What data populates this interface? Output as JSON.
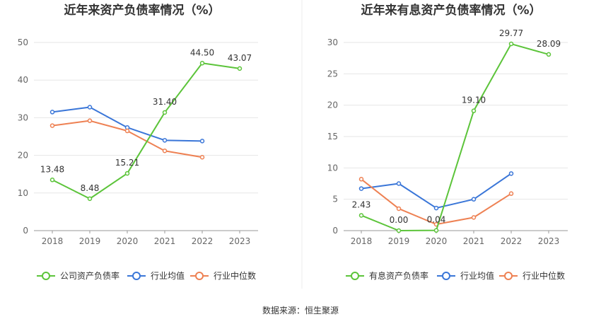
{
  "source_text": "数据来源：恒生聚源",
  "chart_data": [
    {
      "type": "line",
      "title": "近年来资产负债率情况（%）",
      "categories": [
        "2018",
        "2019",
        "2020",
        "2021",
        "2022",
        "2023"
      ],
      "ylim": [
        0,
        50
      ],
      "yticks": [
        "0",
        "10",
        "20",
        "30",
        "40",
        "50"
      ],
      "grid": true,
      "legend_position": "bottom",
      "series": [
        {
          "name": "公司资产负债率",
          "color": "#5cc43a",
          "values": [
            13.48,
            8.48,
            15.21,
            31.4,
            44.5,
            43.07
          ],
          "labels": [
            "13.48",
            "8.48",
            "15.21",
            "31.40",
            "44.50",
            "43.07"
          ]
        },
        {
          "name": "行业均值",
          "color": "#3a76d8",
          "values": [
            31.5,
            32.8,
            27.4,
            24.0,
            23.8,
            null
          ]
        },
        {
          "name": "行业中位数",
          "color": "#ee8153",
          "values": [
            27.9,
            29.2,
            26.5,
            21.2,
            19.5,
            null
          ]
        }
      ]
    },
    {
      "type": "line",
      "title": "近年来有息资产负债率情况（%）",
      "categories": [
        "2018",
        "2019",
        "2020",
        "2021",
        "2022",
        "2023"
      ],
      "ylim": [
        0,
        30
      ],
      "yticks": [
        "0",
        "5",
        "10",
        "15",
        "20",
        "25",
        "30"
      ],
      "grid": true,
      "legend_position": "bottom",
      "series": [
        {
          "name": "有息资产负债率",
          "color": "#5cc43a",
          "values": [
            2.43,
            0.0,
            0.04,
            19.1,
            29.77,
            28.09
          ],
          "labels": [
            "2.43",
            "0.00",
            "0.04",
            "19.10",
            "29.77",
            "28.09"
          ]
        },
        {
          "name": "行业均值",
          "color": "#3a76d8",
          "values": [
            6.7,
            7.5,
            3.6,
            5.0,
            9.1,
            null
          ]
        },
        {
          "name": "行业中位数",
          "color": "#ee8153",
          "values": [
            8.2,
            3.5,
            1.0,
            2.1,
            5.9,
            null
          ]
        }
      ]
    }
  ]
}
